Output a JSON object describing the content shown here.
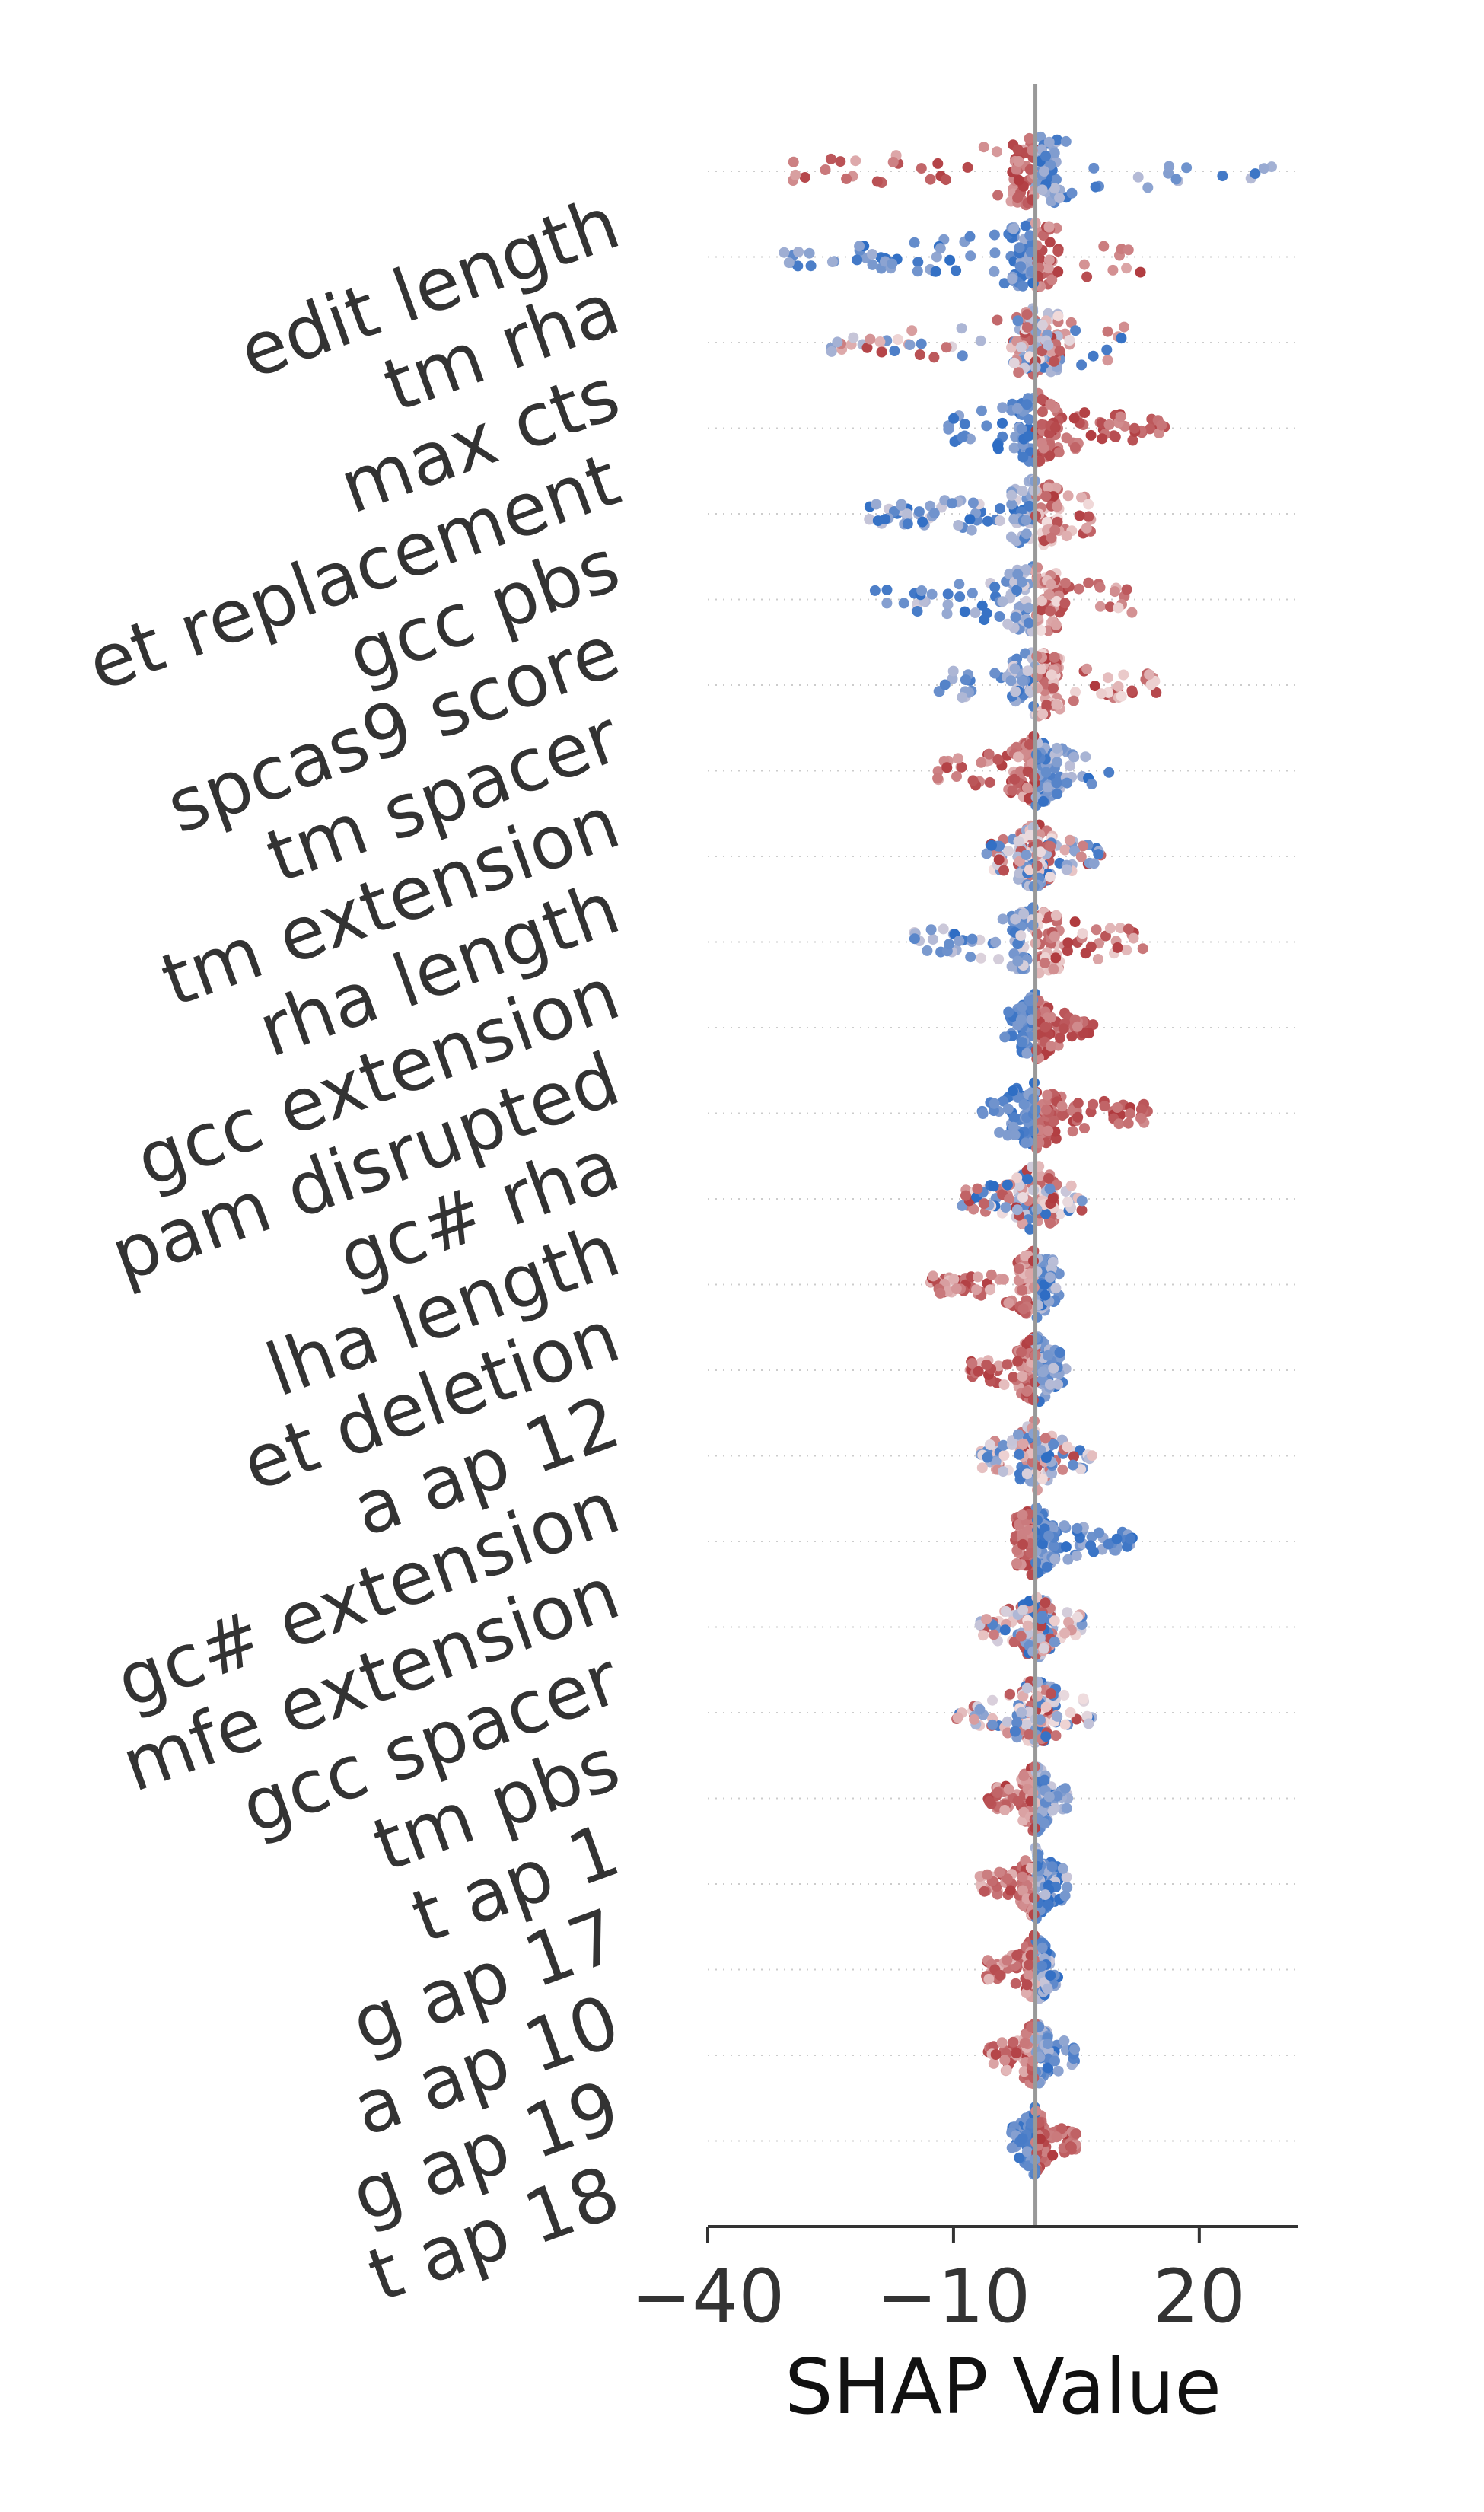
{
  "chart_data": {
    "type": "scatter",
    "subtype": "shap-beeswarm",
    "title": "",
    "xlabel": "SHAP Value",
    "ylabel": "",
    "xlim": [
      -40,
      32
    ],
    "xticks": [
      -40,
      -10,
      20
    ],
    "xtick_labels": [
      "−40",
      "−10",
      "20"
    ],
    "zero_line": 0,
    "grid": "dotted row guides",
    "colors": {
      "low": "#2c6cc4",
      "mid": "#f2dede",
      "high": "#b03a3e",
      "zero_line": "#999999"
    },
    "features": [
      {
        "name": "edit length",
        "min": -30,
        "max": 29,
        "skew": "pos_high"
      },
      {
        "name": "tm rha",
        "min": -31,
        "max": 13,
        "skew": "pos_high_r"
      },
      {
        "name": "max cts",
        "min": -25,
        "max": 11,
        "skew": "mixed"
      },
      {
        "name": "et replacement",
        "min": -11,
        "max": 16,
        "skew": "pos_red"
      },
      {
        "name": "gcc pbs",
        "min": -21,
        "max": 8,
        "skew": "neg_blue"
      },
      {
        "name": "spcas9 score",
        "min": -20,
        "max": 12,
        "skew": "neg_blue"
      },
      {
        "name": "tm spacer",
        "min": -12,
        "max": 15,
        "skew": "neg_blue"
      },
      {
        "name": "tm extension",
        "min": -12,
        "max": 9,
        "skew": "neg_red"
      },
      {
        "name": "rha length",
        "min": -6,
        "max": 8,
        "skew": "mixed"
      },
      {
        "name": "gcc extension",
        "min": -15,
        "max": 14,
        "skew": "neg_blue"
      },
      {
        "name": "pam disrupted",
        "min": -4,
        "max": 8,
        "skew": "pos_red"
      },
      {
        "name": "gc# rha",
        "min": -7,
        "max": 14,
        "skew": "pos_red"
      },
      {
        "name": "lha length",
        "min": -9,
        "max": 6,
        "skew": "mixed"
      },
      {
        "name": "et deletion",
        "min": -13,
        "max": 3,
        "skew": "neg_red"
      },
      {
        "name": "a ap 12",
        "min": -8,
        "max": 4,
        "skew": "neg_red"
      },
      {
        "name": "gc# extension",
        "min": -7,
        "max": 7,
        "skew": "mixed"
      },
      {
        "name": "mfe extension",
        "min": -4,
        "max": 12,
        "skew": "pos_blue"
      },
      {
        "name": "gcc spacer",
        "min": -7,
        "max": 6,
        "skew": "mixed"
      },
      {
        "name": "tm pbs",
        "min": -10,
        "max": 7,
        "skew": "mixed"
      },
      {
        "name": "t ap 1",
        "min": -6,
        "max": 4,
        "skew": "neg_red"
      },
      {
        "name": "g ap 17",
        "min": -7,
        "max": 4,
        "skew": "neg_red"
      },
      {
        "name": "a ap 10",
        "min": -6,
        "max": 3,
        "skew": "neg_red"
      },
      {
        "name": "g ap 19",
        "min": -6,
        "max": 5,
        "skew": "neg_red"
      },
      {
        "name": "t ap 18",
        "min": -3,
        "max": 5,
        "skew": "pos_red"
      }
    ]
  }
}
